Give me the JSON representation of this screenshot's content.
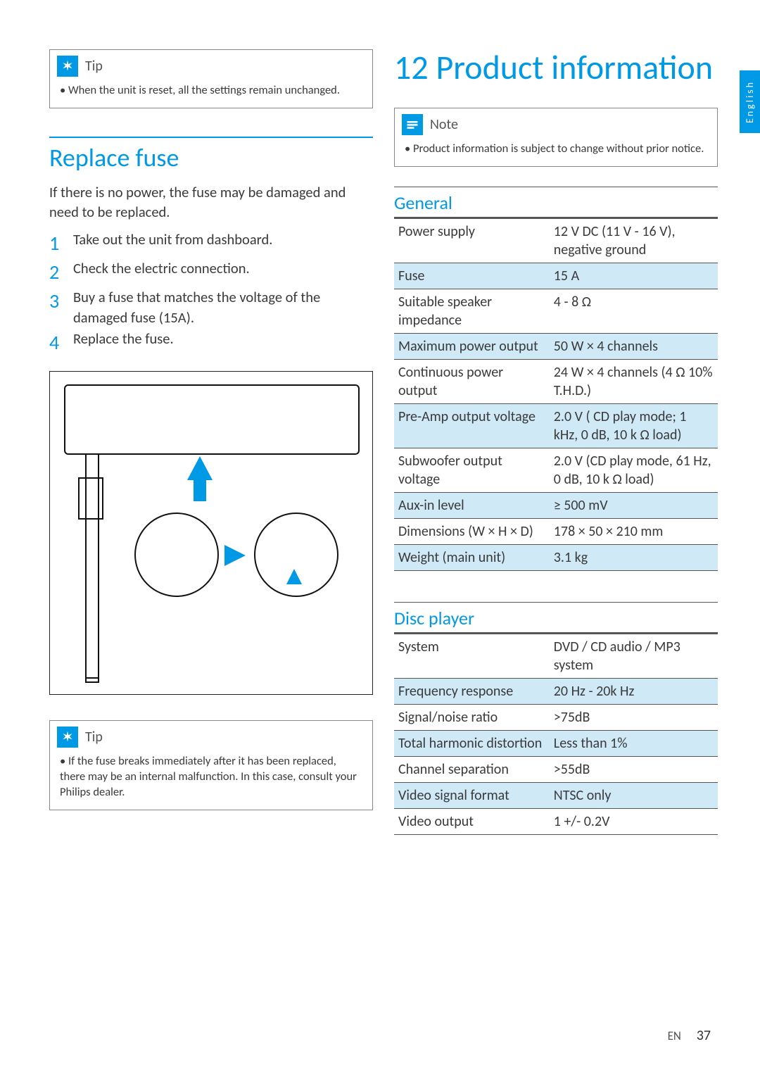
{
  "langTab": "English",
  "left": {
    "tip1": {
      "label": "Tip",
      "text": "When the unit is reset, all the settings remain unchanged."
    },
    "section": "Replace fuse",
    "intro": "If there is no power, the fuse may be damaged and need to be replaced.",
    "steps": [
      "Take out the unit from dashboard.",
      "Check the electric connection.",
      "Buy a fuse that matches the voltage of the damaged fuse (15A).",
      "Replace the fuse."
    ],
    "tip2": {
      "label": "Tip",
      "text": "If the fuse breaks immediately after it has been replaced, there may be an internal malfunction. In this case, consult your Philips dealer."
    }
  },
  "right": {
    "chapter": "12 Product information",
    "note": {
      "label": "Note",
      "text": "Product information is subject to change without prior notice."
    },
    "general": {
      "title": "General",
      "rows": [
        {
          "k": "Power supply",
          "v": "12 V DC (11 V - 16 V), negative ground",
          "alt": false
        },
        {
          "k": "Fuse",
          "v": "15 A",
          "alt": true
        },
        {
          "k": "Suitable speaker impedance",
          "v": "4 - 8 Ω",
          "alt": false
        },
        {
          "k": "Maximum power output",
          "v": "50 W × 4 channels",
          "alt": true
        },
        {
          "k": "Continuous power output",
          "v": "24 W × 4 channels (4 Ω 10% T.H.D.)",
          "alt": false
        },
        {
          "k": "Pre-Amp output voltage",
          "v": "2.0 V ( CD play mode; 1 kHz, 0 dB, 10 k Ω load)",
          "alt": true
        },
        {
          "k": "Subwoofer output voltage",
          "v": "2.0 V (CD play mode, 61 Hz, 0 dB, 10 k Ω load)",
          "alt": false
        },
        {
          "k": "Aux-in level",
          "v": "≥ 500 mV",
          "alt": true
        },
        {
          "k": "Dimensions (W × H × D)",
          "v": "178 × 50 × 210 mm",
          "alt": false
        },
        {
          "k": "Weight (main unit)",
          "v": "3.1 kg",
          "alt": true
        }
      ]
    },
    "disc": {
      "title": "Disc player",
      "rows": [
        {
          "k": "System",
          "v": "DVD / CD audio / MP3 system",
          "alt": false
        },
        {
          "k": "Frequency response",
          "v": "20 Hz - 20k Hz",
          "alt": true
        },
        {
          "k": "Signal/noise ratio",
          "v": ">75dB",
          "alt": false
        },
        {
          "k": "Total harmonic distortion",
          "v": "Less than 1%",
          "alt": true
        },
        {
          "k": "Channel separation",
          "v": ">55dB",
          "alt": false
        },
        {
          "k": "Video signal format",
          "v": "NTSC only",
          "alt": true
        },
        {
          "k": "Video output",
          "v": "1 +/- 0.2V",
          "alt": false
        }
      ]
    }
  },
  "footer": {
    "lang": "EN",
    "page": "37"
  }
}
